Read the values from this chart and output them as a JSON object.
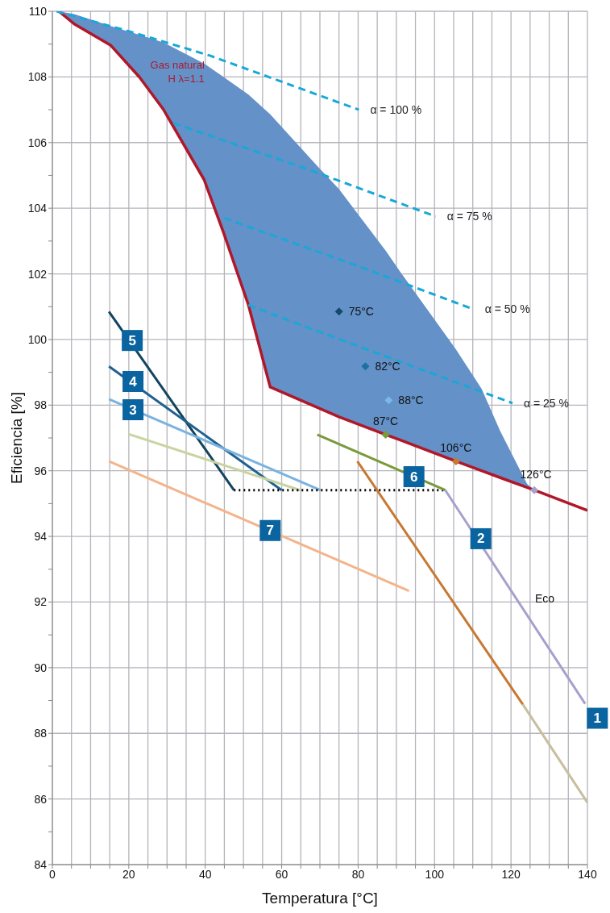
{
  "chart_data": {
    "type": "line",
    "xlabel": "Temperatura [°C]",
    "ylabel": "Eficiencia [%]",
    "xlim": [
      0,
      140
    ],
    "ylim": [
      84,
      110
    ],
    "xticks": [
      0,
      {
        "value": 5,
        "label": null
      },
      {
        "value": 10,
        "label": null
      },
      {
        "value": 15,
        "label": null
      },
      20,
      {
        "value": 25,
        "label": null
      },
      {
        "value": 30,
        "label": null
      },
      {
        "value": 35,
        "label": null
      },
      40,
      {
        "value": 45,
        "label": null
      },
      {
        "value": 50,
        "label": null
      },
      {
        "value": 55,
        "label": null
      },
      60,
      {
        "value": 65,
        "label": null
      },
      {
        "value": 70,
        "label": null
      },
      {
        "value": 75,
        "label": null
      },
      80,
      {
        "value": 85,
        "label": null
      },
      {
        "value": 90,
        "label": null
      },
      {
        "value": 95,
        "label": null
      },
      100,
      {
        "value": 105,
        "label": null
      },
      {
        "value": 110,
        "label": null
      },
      {
        "value": 115,
        "label": null
      },
      120,
      {
        "value": 125,
        "label": null
      },
      {
        "value": 130,
        "label": null
      },
      {
        "value": 135,
        "label": null
      },
      140
    ],
    "yticks": [
      84,
      {
        "value": 85,
        "label": null
      },
      86,
      {
        "value": 87,
        "label": null
      },
      88,
      {
        "value": 89,
        "label": null
      },
      90,
      {
        "value": 91,
        "label": null
      },
      92,
      {
        "value": 93,
        "label": null
      },
      94,
      {
        "value": 95,
        "label": null
      },
      96,
      {
        "value": 97,
        "label": null
      },
      98,
      {
        "value": 99,
        "label": null
      },
      100,
      {
        "value": 101,
        "label": null
      },
      102,
      {
        "value": 103,
        "label": null
      },
      104,
      {
        "value": 105,
        "label": null
      },
      106,
      {
        "value": 107,
        "label": null
      },
      108,
      {
        "value": 109,
        "label": null
      },
      110
    ],
    "grid": true,
    "series": [
      {
        "name": "Gas natural H λ=1.1",
        "color": "#b0182a",
        "x": [
          1.7,
          5.9,
          15.2,
          22.8,
          29.1,
          39.7,
          44.8,
          51.3,
          57.0,
          69.3,
          75.0,
          87.2,
          91.2,
          105.6,
          112.3,
          117.2,
          124.2,
          126.1,
          140
        ],
        "values": [
          110.0,
          109.6,
          108.97,
          107.99,
          107.0,
          104.87,
          103.25,
          101.05,
          98.55,
          97.93,
          97.64,
          97.1,
          96.93,
          96.29,
          96.0,
          95.79,
          95.49,
          95.41,
          94.79
        ],
        "lower": [
          110.0,
          109.6,
          108.97,
          107.99,
          107.0,
          104.87,
          103.25,
          101.05,
          98.55,
          97.93,
          97.64,
          97.1,
          96.93,
          96.29,
          96.0,
          95.79,
          95.49,
          95.41,
          null
        ],
        "upper": [
          110.0,
          109.91,
          109.55,
          109.28,
          109.05,
          108.41,
          108.0,
          107.46,
          106.86,
          105.29,
          104.58,
          102.71,
          102.03,
          99.7,
          98.5,
          97.2,
          95.6,
          95.41,
          null
        ]
      },
      {
        "name": "α = 100 %",
        "color": "#18a8d8",
        "line_style": "dashed",
        "x": [
          1.1,
          20.1,
          41.2,
          80.2
        ],
        "values": [
          110.0,
          109.39,
          108.65,
          107.0
        ]
      },
      {
        "name": "α = 75 %",
        "color": "#18a8d8",
        "line_style": "dashed",
        "x": [
          31.7,
          66.5,
          100.3
        ],
        "values": [
          106.59,
          105.2,
          103.75
        ]
      },
      {
        "name": "α = 50 %",
        "color": "#18a8d8",
        "line_style": "dashed",
        "x": [
          45.0,
          79.2,
          110.2
        ],
        "values": [
          103.7,
          102.27,
          100.92
        ]
      },
      {
        "name": "α = 25 %",
        "color": "#18a8d8",
        "line_style": "dashed",
        "x": [
          51.3,
          66.5,
          120.4
        ],
        "values": [
          101.05,
          100.38,
          98.06
        ]
      },
      {
        "color": "#12445f",
        "x": [
          14.8,
          47.5
        ],
        "values": [
          100.85,
          95.41
        ]
      },
      {
        "color": "#1f6190",
        "x": [
          14.8,
          60.0
        ],
        "values": [
          99.18,
          95.41
        ]
      },
      {
        "color": "#7ab2e0",
        "x": [
          14.8,
          70.1
        ],
        "values": [
          98.18,
          95.41
        ]
      },
      {
        "color": "#c8d4a0",
        "x": [
          19.9,
          64.8
        ],
        "values": [
          97.12,
          95.41
        ]
      },
      {
        "color": "#f4b48a",
        "x": [
          14.8,
          93.3
        ],
        "values": [
          96.29,
          92.34
        ]
      },
      {
        "color": "#000000",
        "line_style": "dotted",
        "x": [
          47.5,
          102.8
        ],
        "values": [
          95.41,
          95.41
        ]
      },
      {
        "color": "#7a9a3a",
        "x": [
          69.3,
          102.8
        ],
        "values": [
          97.1,
          95.41
        ]
      },
      {
        "color": "#a8a0cc",
        "x": [
          102.8,
          139.4
        ],
        "values": [
          95.41,
          88.9
        ]
      },
      {
        "color": "#c87832",
        "x": [
          79.8,
          123.1
        ],
        "values": [
          96.29,
          88.88
        ]
      },
      {
        "color": "#c8bea0",
        "x": [
          123.1,
          140
        ],
        "values": [
          88.88,
          85.89
        ]
      },
      {
        "type": "scatter",
        "name": "75°C",
        "color": "#16486a",
        "marker": "diamond",
        "x": [
          75.0
        ],
        "values": [
          100.85
        ]
      },
      {
        "type": "scatter",
        "name": "82°C",
        "color": "#1f6fa0",
        "marker": "diamond",
        "x": [
          81.9
        ],
        "values": [
          99.18
        ]
      },
      {
        "type": "scatter",
        "name": "88°C",
        "color": "#7ab8e8",
        "marker": "diamond",
        "x": [
          88.0
        ],
        "values": [
          98.15
        ]
      },
      {
        "type": "scatter",
        "name": "87°C",
        "color": "#7a9a3a",
        "marker": "diamond",
        "x": [
          87.2
        ],
        "values": [
          97.1
        ]
      },
      {
        "type": "scatter",
        "name": "106°C",
        "color": "#c87832",
        "marker": "diamond",
        "x": [
          105.6
        ],
        "values": [
          96.29
        ]
      },
      {
        "type": "scatter",
        "name": "126°C",
        "color": "#a8a0cc",
        "marker": "diamond",
        "x": [
          126.1
        ],
        "values": [
          95.41
        ]
      }
    ],
    "annotations": [
      "5",
      "4",
      "3",
      "7",
      "6",
      "2",
      "1",
      "Eco"
    ]
  }
}
